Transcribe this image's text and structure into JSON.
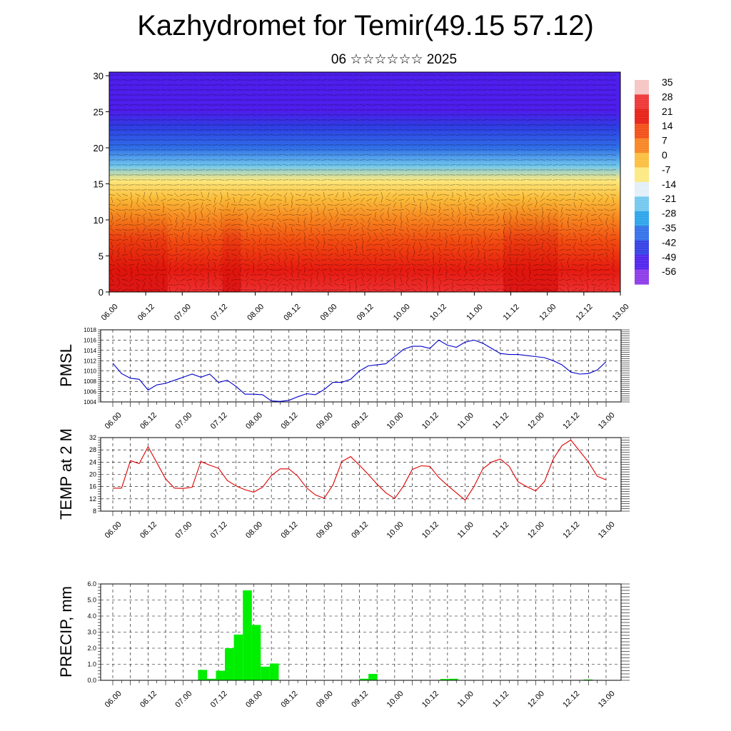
{
  "title": "Kazhydromet for Temir(49.15 57.12)",
  "subtitle": "06 ☆☆☆☆☆☆ 2025",
  "colorbar": {
    "labels": [
      "35",
      "28",
      "21",
      "14",
      "7",
      "0",
      "-7",
      "-14",
      "-21",
      "-28",
      "-35",
      "-42",
      "-49",
      "-56"
    ],
    "colors": [
      "#f6c3c3",
      "#ee3030",
      "#e61a10",
      "#f24a10",
      "#f7821e",
      "#fbbd3a",
      "#fde97e",
      "#e1eff8",
      "#6fc7ef",
      "#27a3ea",
      "#2f6ee8",
      "#2f3ce4",
      "#4d1eec",
      "#8a35e8"
    ]
  },
  "chart_data": [
    {
      "type": "heatmap",
      "name": "cross-section",
      "x_ticks": [
        "06.00",
        "06.12",
        "07.00",
        "07.12",
        "08.00",
        "08.12",
        "09.00",
        "09.12",
        "10.00",
        "10.12",
        "11.00",
        "11.12",
        "12.00",
        "12.12",
        "13.00"
      ],
      "y_ticks": [
        0,
        5,
        10,
        15,
        20,
        25,
        30
      ],
      "ylim": [
        0,
        30.5
      ],
      "profile": [
        {
          "level": 0,
          "value": 28
        },
        {
          "level": 3,
          "value": 24
        },
        {
          "level": 7,
          "value": 14
        },
        {
          "level": 10,
          "value": 7
        },
        {
          "level": 13,
          "value": 0
        },
        {
          "level": 15.5,
          "value": -10
        },
        {
          "level": 17.5,
          "value": -21
        },
        {
          "level": 20,
          "value": -35
        },
        {
          "level": 23,
          "value": -49
        },
        {
          "level": 25,
          "value": -56
        },
        {
          "level": 30.5,
          "value": -56
        }
      ],
      "vertical_bands": [
        {
          "x_from": 0.0,
          "x_to": 1.6,
          "color": "#e01010"
        },
        {
          "x_from": 3.1,
          "x_to": 3.6,
          "color": "#f0c020"
        },
        {
          "x_from": 10.8,
          "x_to": 12.3,
          "color": "#e01010"
        }
      ]
    },
    {
      "type": "line",
      "ylabel": "PMSL",
      "x_ticks": [
        "06.00",
        "06.12",
        "07.00",
        "07.12",
        "08.00",
        "08.12",
        "09.00",
        "09.12",
        "10.00",
        "10.12",
        "11.00",
        "11.12",
        "12.00",
        "12.12",
        "13.00"
      ],
      "y_ticks": [
        1004,
        1006,
        1008,
        1010,
        1012,
        1014,
        1016,
        1018
      ],
      "ylim": [
        1004,
        1018
      ],
      "color": "#0000cc",
      "values": [
        1011.5,
        1009.5,
        1008.6,
        1008.4,
        1006.3,
        1007.3,
        1007.6,
        1008.2,
        1008.8,
        1009.4,
        1008.8,
        1009.4,
        1007.8,
        1008.2,
        1007.0,
        1005.5,
        1005.5,
        1005.4,
        1004.2,
        1004.1,
        1004.3,
        1005.0,
        1005.6,
        1005.4,
        1006.4,
        1007.8,
        1007.8,
        1008.4,
        1010.0,
        1011.0,
        1011.2,
        1011.4,
        1012.8,
        1014.2,
        1014.8,
        1014.8,
        1014.4,
        1016.0,
        1015.0,
        1014.6,
        1015.6,
        1016.0,
        1015.4,
        1014.4,
        1013.4,
        1013.2,
        1013.2,
        1013.0,
        1012.8,
        1012.6,
        1012.0,
        1011.2,
        1009.8,
        1009.4,
        1009.5,
        1010.2,
        1011.8
      ]
    },
    {
      "type": "line",
      "ylabel": "TEMP at 2 M",
      "x_ticks": [
        "06.00",
        "06.12",
        "07.00",
        "07.12",
        "08.00",
        "08.12",
        "09.00",
        "09.12",
        "10.00",
        "10.12",
        "11.00",
        "11.12",
        "12.00",
        "12.12",
        "13.00"
      ],
      "y_ticks": [
        8,
        12,
        16,
        20,
        24,
        28,
        32
      ],
      "ylim": [
        8,
        32
      ],
      "color": "#dd0000",
      "values": [
        15.5,
        15.5,
        24.5,
        23.5,
        29.0,
        23.8,
        18.5,
        15.5,
        15.4,
        15.8,
        24.2,
        23.0,
        22.0,
        18.0,
        16.2,
        15.0,
        14.2,
        15.8,
        19.6,
        21.8,
        21.8,
        19.4,
        15.6,
        13.3,
        12.2,
        16.6,
        24.2,
        25.8,
        23.0,
        20.0,
        16.8,
        14.0,
        12.1,
        16.2,
        21.6,
        22.8,
        22.6,
        19.0,
        16.4,
        14.0,
        11.6,
        16.0,
        21.8,
        24.0,
        25.0,
        22.6,
        17.6,
        16.0,
        14.6,
        17.6,
        25.0,
        29.4,
        31.2,
        27.6,
        24.0,
        19.4,
        18.2
      ]
    },
    {
      "type": "bar",
      "ylabel": "PRECIP, mm",
      "x_ticks": [
        "06.00",
        "06.12",
        "07.00",
        "07.12",
        "08.00",
        "08.12",
        "09.00",
        "09.12",
        "10.00",
        "10.12",
        "11.00",
        "11.12",
        "12.00",
        "12.12",
        "13.00"
      ],
      "y_ticks": [
        "0.0",
        "1.0",
        "2.0",
        "3.0",
        "4.0",
        "5.0",
        "6.0"
      ],
      "ylim": [
        0,
        6
      ],
      "color": "#00ee00",
      "values": [
        0,
        0,
        0,
        0,
        0,
        0,
        0,
        0,
        0,
        0,
        0.65,
        0.1,
        0.6,
        2.0,
        2.85,
        5.6,
        3.45,
        0.85,
        1.05,
        0,
        0,
        0,
        0,
        0,
        0,
        0,
        0,
        0,
        0.1,
        0.4,
        0,
        0,
        0,
        0,
        0,
        0,
        0,
        0.08,
        0.1,
        0,
        0,
        0,
        0,
        0,
        0,
        0,
        0,
        0,
        0,
        0,
        0,
        0,
        0,
        0.05,
        0,
        0
      ]
    }
  ]
}
